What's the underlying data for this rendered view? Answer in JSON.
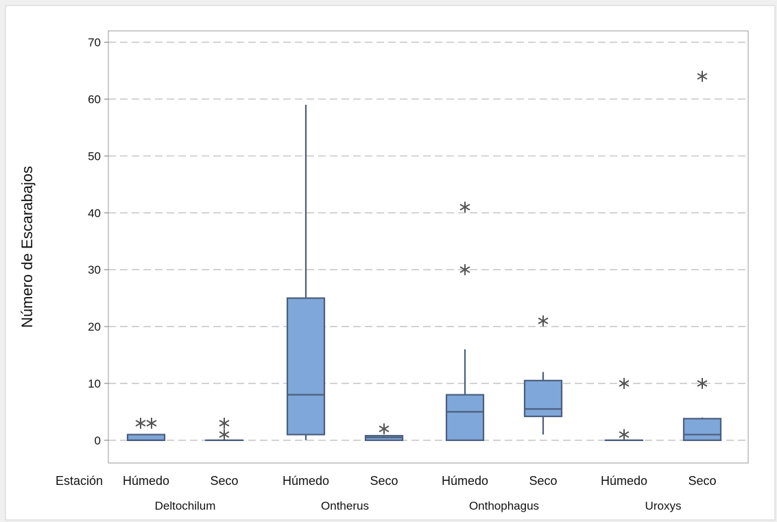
{
  "chart_data": {
    "type": "boxplot",
    "ylabel": "Número de Escarabajos",
    "xlabel_factor": "Estación",
    "ylim": [
      -4,
      72
    ],
    "yticks": [
      0,
      10,
      20,
      30,
      40,
      50,
      60,
      70
    ],
    "grid": "horizontal dashed",
    "groups": [
      {
        "name": "Deltochilum",
        "boxes": [
          {
            "label": "Húmedo",
            "q1": 0,
            "median": 0,
            "q3": 1,
            "whisker_low": 0,
            "whisker_high": 1,
            "outliers": [
              3,
              3
            ]
          },
          {
            "label": "Seco",
            "q1": 0,
            "median": 0,
            "q3": 0,
            "whisker_low": 0,
            "whisker_high": 0,
            "outliers": [
              3,
              1
            ]
          }
        ]
      },
      {
        "name": "Ontherus",
        "boxes": [
          {
            "label": "Húmedo",
            "q1": 1,
            "median": 8,
            "q3": 25,
            "whisker_low": 0,
            "whisker_high": 59,
            "outliers": []
          },
          {
            "label": "Seco",
            "q1": 0,
            "median": 0.5,
            "q3": 0.8,
            "whisker_low": 0,
            "whisker_high": 0.8,
            "outliers": [
              2
            ]
          }
        ]
      },
      {
        "name": "Onthophagus",
        "boxes": [
          {
            "label": "Húmedo",
            "q1": 0,
            "median": 5,
            "q3": 8,
            "whisker_low": 0,
            "whisker_high": 16,
            "outliers": [
              41,
              30
            ]
          },
          {
            "label": "Seco",
            "q1": 4.2,
            "median": 5.5,
            "q3": 10.5,
            "whisker_low": 1,
            "whisker_high": 12,
            "outliers": [
              21
            ]
          }
        ]
      },
      {
        "name": "Uroxys",
        "boxes": [
          {
            "label": "Húmedo",
            "q1": 0,
            "median": 0,
            "q3": 0,
            "whisker_low": 0,
            "whisker_high": 0,
            "outliers": [
              10,
              1
            ]
          },
          {
            "label": "Seco",
            "q1": 0,
            "median": 1,
            "q3": 3.8,
            "whisker_low": 0,
            "whisker_high": 4,
            "outliers": [
              10,
              64
            ]
          }
        ]
      }
    ],
    "colors": {
      "box_fill": "#7fa7d9",
      "box_stroke": "#4c5e7e",
      "outlier": "#555555",
      "grid": "#c8c8c8",
      "figure_bg": "#f0f0f0",
      "plot_bg": "#ffffff"
    }
  }
}
